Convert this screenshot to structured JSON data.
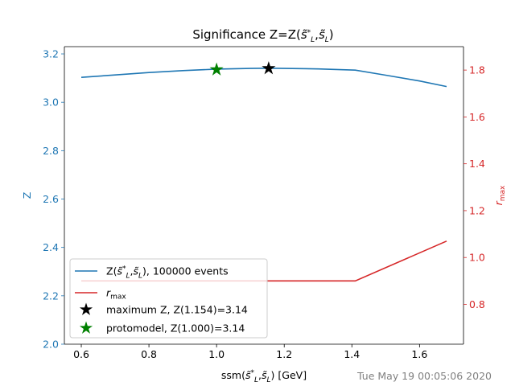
{
  "colors": {
    "z_series": "#1f77b4",
    "r_series": "#d62728",
    "max_marker": "#000000",
    "proto_marker": "#008000",
    "timestamp": "#808080"
  },
  "chart_data": {
    "type": "line",
    "title": "Significance Z=Z(s̃*L,s̃L)",
    "xlabel": "ssm(s̃*L,s̃L) [GeV]",
    "ylabel_left": "Z",
    "ylabel_right": "r_max",
    "xlim": [
      0.55,
      1.73
    ],
    "ylim_left": [
      2.0,
      3.23
    ],
    "ylim_right": [
      0.63,
      1.9
    ],
    "x_ticks": [
      "0.6",
      "0.8",
      "1.0",
      "1.2",
      "1.4",
      "1.6"
    ],
    "y_left_ticks": [
      "2.0",
      "2.2",
      "2.4",
      "2.6",
      "2.8",
      "3.0",
      "3.2"
    ],
    "y_right_ticks": [
      "0.8",
      "1.0",
      "1.2",
      "1.4",
      "1.6",
      "1.8"
    ],
    "series": [
      {
        "name": "Z(s̃*L,s̃L), 100000 events",
        "axis": "left",
        "x": [
          0.6,
          0.7,
          0.8,
          0.9,
          1.0,
          1.1,
          1.154,
          1.2,
          1.3,
          1.41,
          1.5,
          1.6,
          1.68
        ],
        "values": [
          3.103,
          3.113,
          3.123,
          3.131,
          3.137,
          3.14,
          3.141,
          3.14,
          3.138,
          3.133,
          3.112,
          3.088,
          3.065
        ]
      },
      {
        "name": "r_max",
        "axis": "right",
        "x": [
          0.6,
          1.0,
          1.41,
          1.68
        ],
        "values": [
          0.9,
          0.9,
          0.9,
          1.07
        ]
      }
    ],
    "markers": [
      {
        "name": "maximum Z, Z(1.154)=3.14",
        "x": 1.154,
        "y": 3.14,
        "axis": "left"
      },
      {
        "name": "protomodel, Z(1.000)=3.14",
        "x": 1.0,
        "y": 3.135,
        "axis": "left"
      }
    ],
    "legend": {
      "position": "lower-left",
      "entries": [
        {
          "label": "Z(s̃*L,s̃L), 100000 events",
          "kind": "line",
          "series": 0
        },
        {
          "label": "r_max",
          "kind": "line",
          "series": 1
        },
        {
          "label": "maximum Z, Z(1.154)=3.14",
          "kind": "star",
          "marker": 0
        },
        {
          "label": "protomodel, Z(1.000)=3.14",
          "kind": "star",
          "marker": 1
        }
      ]
    },
    "timestamp": "Tue May 19 00:05:06 2020"
  }
}
